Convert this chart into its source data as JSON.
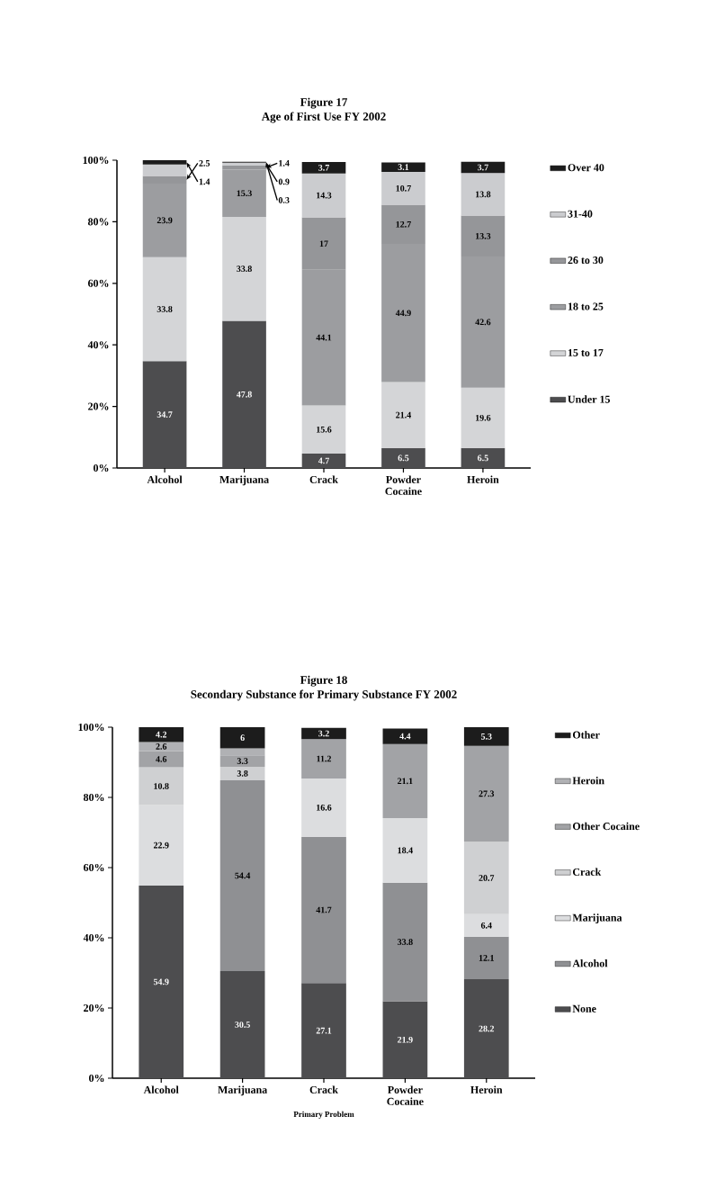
{
  "chart_data": [
    {
      "type": "bar",
      "stacked": true,
      "title": "Figure 17",
      "subtitle": "Age of First Use FY 2002",
      "categories": [
        "Alcohol",
        "Marijuana",
        "Crack",
        "Powder Cocaine",
        "Heroin"
      ],
      "ylim": [
        0,
        100
      ],
      "yticks": [
        {
          "value": 0,
          "label": "0%"
        },
        {
          "value": 20,
          "label": "20%"
        },
        {
          "value": 40,
          "label": "40%"
        },
        {
          "value": 60,
          "label": "60%"
        },
        {
          "value": 80,
          "label": "80%"
        },
        {
          "value": 100,
          "label": "100%"
        }
      ],
      "legend": "right",
      "series": [
        {
          "name": "Under 15",
          "color": "#4d4d4f",
          "values": [
            34.7,
            47.8,
            4.7,
            6.5,
            6.5
          ],
          "value_labels": [
            "34.7",
            "47.8",
            "4.7",
            "6.5",
            "6.5"
          ]
        },
        {
          "name": "15 to 17",
          "color": "#d4d5d7",
          "values": [
            33.8,
            33.8,
            15.6,
            21.4,
            19.6
          ],
          "value_labels": [
            "33.8",
            "33.8",
            "15.6",
            "21.4",
            "19.6"
          ]
        },
        {
          "name": "18 to 25",
          "color": "#9c9da0",
          "values": [
            23.9,
            15.3,
            44.1,
            44.9,
            42.6
          ],
          "value_labels": [
            "23.9",
            "15.3",
            "44.1",
            "44.9",
            "42.6"
          ]
        },
        {
          "name": "26 to 30",
          "color": "#959699",
          "values": [
            2.5,
            1.4,
            17,
            12.7,
            13.3
          ],
          "value_labels": [
            "2.5",
            "1.4",
            "17",
            "12.7",
            "13.3"
          ]
        },
        {
          "name": "31-40",
          "color": "#cbcccf",
          "values": [
            3.7,
            0.9,
            14.3,
            10.7,
            13.8
          ],
          "value_labels": [
            null,
            "0.9",
            "14.3",
            "10.7",
            "13.8"
          ]
        },
        {
          "name": "Over 40",
          "color": "#1c1c1c",
          "values": [
            1.4,
            0.3,
            3.7,
            3.1,
            3.7
          ],
          "value_labels": [
            "1.4",
            "0.3",
            "3.7",
            "3.1",
            "3.7"
          ]
        }
      ]
    },
    {
      "type": "bar",
      "stacked": true,
      "title": "Figure 18",
      "subtitle": "Secondary Substance for Primary Substance FY 2002",
      "xlabel": "Primary Problem",
      "categories": [
        "Alcohol",
        "Marijuana",
        "Crack",
        "Powder Cocaine",
        "Heroin"
      ],
      "ylim": [
        0,
        100
      ],
      "yticks": [
        {
          "value": 0,
          "label": "0%"
        },
        {
          "value": 20,
          "label": "20%"
        },
        {
          "value": 40,
          "label": "40%"
        },
        {
          "value": 60,
          "label": "60%"
        },
        {
          "value": 80,
          "label": "80%"
        },
        {
          "value": 100,
          "label": "100%"
        }
      ],
      "legend": "right",
      "series": [
        {
          "name": "None",
          "color": "#4d4d4f",
          "values": [
            54.9,
            30.5,
            27.1,
            21.9,
            28.2
          ],
          "value_labels": [
            "54.9",
            "30.5",
            "27.1",
            "21.9",
            "28.2"
          ]
        },
        {
          "name": "Alcohol",
          "color": "#8f9093",
          "values": [
            null,
            54.4,
            41.7,
            33.8,
            12.1
          ],
          "value_labels": [
            null,
            "54.4",
            "41.7",
            "33.8",
            "12.1"
          ]
        },
        {
          "name": "Marijuana",
          "color": "#dcdddf",
          "values": [
            22.9,
            null,
            16.6,
            18.4,
            6.4
          ],
          "value_labels": [
            "22.9",
            null,
            "16.6",
            "18.4",
            "6.4"
          ]
        },
        {
          "name": "Crack",
          "color": "#cfd0d2",
          "values": [
            10.8,
            3.8,
            null,
            null,
            20.7
          ],
          "value_labels": [
            "10.8",
            "3.8",
            null,
            null,
            "20.7"
          ]
        },
        {
          "name": "Other Cocaine",
          "color": "#a2a3a6",
          "values": [
            4.6,
            3.3,
            11.2,
            21.1,
            27.3
          ],
          "value_labels": [
            "4.6",
            "3.3",
            "11.2",
            "21.1",
            "27.3"
          ]
        },
        {
          "name": "Heroin",
          "color": "#b0b1b4",
          "values": [
            2.6,
            2,
            null,
            null,
            null
          ],
          "value_labels": [
            "2.6",
            null,
            null,
            null,
            null
          ]
        },
        {
          "name": "Other",
          "color": "#1c1c1c",
          "values": [
            4.2,
            6,
            3.2,
            4.4,
            5.3
          ],
          "value_labels": [
            "4.2",
            "6",
            "3.2",
            "4.4",
            "5.3"
          ]
        }
      ]
    }
  ]
}
